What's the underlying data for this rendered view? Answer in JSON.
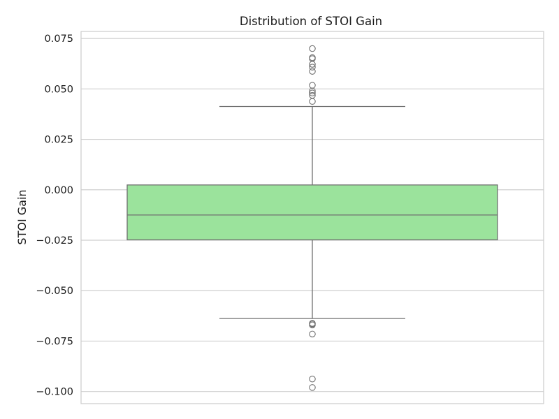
{
  "chart_data": {
    "type": "box",
    "title": "Distribution of STOI Gain",
    "xlabel": "",
    "ylabel": "STOI Gain",
    "ylim": [
      -0.106,
      0.0785
    ],
    "yticks": [
      {
        "value": 0.075,
        "label": "0.075"
      },
      {
        "value": 0.05,
        "label": "0.050"
      },
      {
        "value": 0.025,
        "label": "0.025"
      },
      {
        "value": 0.0,
        "label": "0.000"
      },
      {
        "value": -0.025,
        "label": "−0.025"
      },
      {
        "value": -0.05,
        "label": "−0.050"
      },
      {
        "value": -0.075,
        "label": "−0.075"
      },
      {
        "value": -0.1,
        "label": "−0.100"
      }
    ],
    "grid": "horizontal",
    "box": {
      "q1": -0.0248,
      "median": -0.0125,
      "q3": 0.0024,
      "whisker_low": -0.0638,
      "whisker_high": 0.0413
    },
    "outliers": [
      0.07,
      0.0655,
      0.065,
      0.0622,
      0.0608,
      0.0587,
      0.0518,
      0.049,
      0.048,
      0.0468,
      0.0438,
      -0.0662,
      -0.0665,
      -0.067,
      -0.0715,
      -0.0938,
      -0.098
    ],
    "colors": {
      "box_fill": "#9be39c",
      "box_line": "#707070",
      "grid": "#cfcfcf",
      "spine": "#cccccc"
    }
  }
}
